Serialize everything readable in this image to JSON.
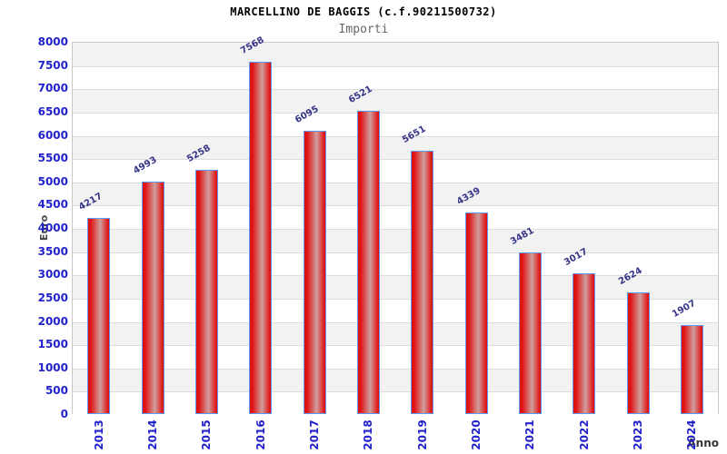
{
  "chart_data": {
    "type": "bar",
    "title": "MARCELLINO DE BAGGIS (c.f.90211500732)",
    "subtitle": "Importi",
    "xlabel": "Anno",
    "ylabel": "Euro",
    "categories": [
      "2013",
      "2014",
      "2015",
      "2016",
      "2017",
      "2018",
      "2019",
      "2020",
      "2021",
      "2022",
      "2023",
      "2024"
    ],
    "values": [
      4217,
      4993,
      5258,
      7568,
      6095,
      6521,
      5651,
      4339,
      3481,
      3017,
      2624,
      1907
    ],
    "ylim": [
      0,
      8000
    ],
    "ytick_step": 500,
    "grid": "horizontal-bands",
    "legend_position": "none",
    "colors": {
      "bar_fill_edge": "#e11212",
      "bar_fill_center": "#cf9e9e",
      "bar_border": "#5b9bf5",
      "tick_label": "#2222cc",
      "value_label": "#333388",
      "band_gray": "#f2f2f2",
      "band_white": "#ffffff",
      "gridline": "#dcdcdc",
      "plot_border": "#c8c8c8",
      "axis_title": "#444444",
      "title": "#000000",
      "subtitle": "#666666"
    }
  }
}
